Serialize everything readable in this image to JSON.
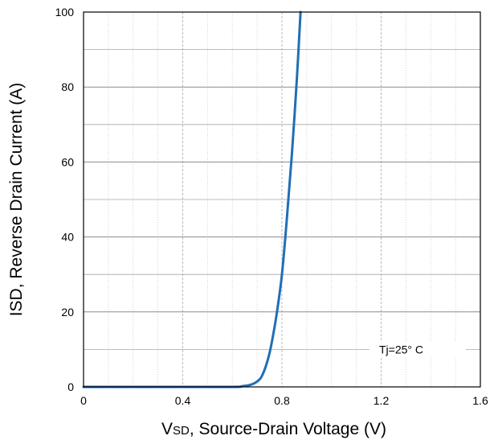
{
  "chart_data": {
    "type": "line",
    "xlabel": {
      "main": "V",
      "sub": "SD",
      "rest": ", Source-Drain Voltage (V)"
    },
    "ylabel": "ISD, Reverse Drain Current (A)",
    "xlim": [
      0,
      1.6
    ],
    "ylim": [
      0,
      100
    ],
    "x_ticks": [
      0,
      0.4,
      0.8,
      1.2,
      1.6
    ],
    "y_ticks": [
      0,
      20,
      40,
      60,
      80,
      100
    ],
    "x_tick_labels": [
      "0",
      "0.4",
      "0.8",
      "1.2",
      "1.6"
    ],
    "y_tick_labels": [
      "0",
      "20",
      "40",
      "60",
      "80",
      "100"
    ],
    "x_minor_gridlines": [
      0.1,
      0.2,
      0.3,
      0.5,
      0.6,
      0.7,
      0.9,
      1.0,
      1.1,
      1.3,
      1.4,
      1.5
    ],
    "y_minor_gridlines": [
      10,
      30,
      50,
      70,
      90
    ],
    "grid": true,
    "annotation": "Tj=25° C",
    "series": [
      {
        "color": "#1f6fb5",
        "x": [
          0.0,
          0.3,
          0.6,
          0.64,
          0.67,
          0.69,
          0.71,
          0.72,
          0.735,
          0.75,
          0.765,
          0.78,
          0.8,
          0.82,
          0.84,
          0.86,
          0.875
        ],
        "y": [
          0,
          0,
          0,
          0.2,
          0.5,
          1,
          2,
          3,
          5.5,
          9,
          14,
          20,
          30,
          45,
          62,
          82,
          100
        ]
      }
    ]
  }
}
